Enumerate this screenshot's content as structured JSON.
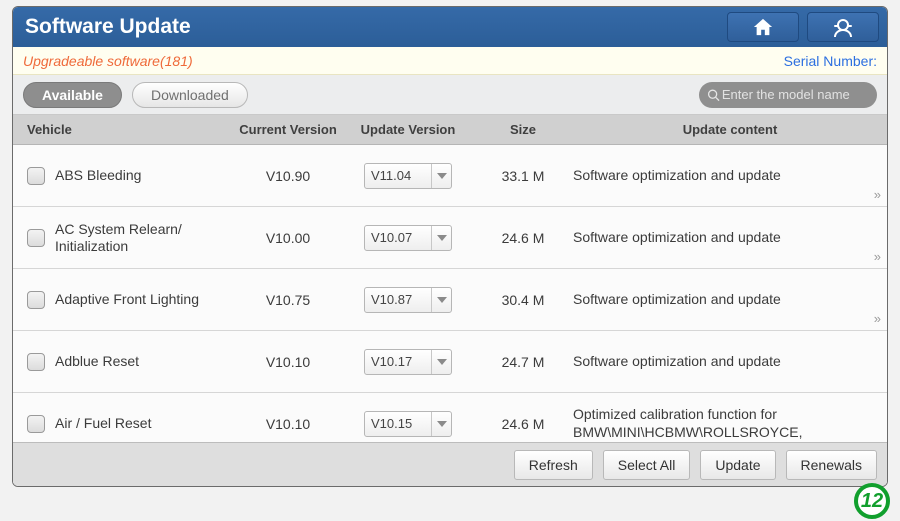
{
  "colors": {
    "titlebar_bg_top": "#356aa8",
    "titlebar_bg_bottom": "#2c5e98",
    "accent_orange": "#ef6a3a",
    "serial_blue": "#2c6fe0",
    "badge_green": "#119f2d"
  },
  "header": {
    "title": "Software Update"
  },
  "info": {
    "upgradeable_label": "Upgradeable software",
    "upgradeable_count": "(181)",
    "serial_label": "Serial Number:"
  },
  "tabs": {
    "available": "Available",
    "downloaded": "Downloaded"
  },
  "search": {
    "placeholder": "Enter the model name"
  },
  "columns": {
    "vehicle": "Vehicle",
    "current": "Current Version",
    "update": "Update Version",
    "size": "Size",
    "content": "Update content"
  },
  "rows": [
    {
      "name": "ABS Bleeding",
      "current": "V10.90",
      "update": "V11.04",
      "size": "33.1 M",
      "content": "Software optimization and update",
      "more": true
    },
    {
      "name": "AC System Relearn/\nInitialization",
      "current": "V10.00",
      "update": "V10.07",
      "size": "24.6 M",
      "content": "Software optimization and update",
      "more": true
    },
    {
      "name": "Adaptive Front Lighting",
      "current": "V10.75",
      "update": "V10.87",
      "size": "30.4 M",
      "content": "Software optimization and update",
      "more": true
    },
    {
      "name": "Adblue Reset",
      "current": "V10.10",
      "update": "V10.17",
      "size": "24.7 M",
      "content": "Software optimization and update",
      "more": false
    },
    {
      "name": "Air / Fuel Reset",
      "current": "V10.10",
      "update": "V10.15",
      "size": "24.6 M",
      "content": "Optimized calibration function for BMW\\MINI\\HCBMW\\ROLLSROYCE,",
      "more": false
    }
  ],
  "actions": {
    "refresh": "Refresh",
    "select_all": "Select All",
    "update": "Update",
    "renewals": "Renewals"
  },
  "page_badge": "12"
}
